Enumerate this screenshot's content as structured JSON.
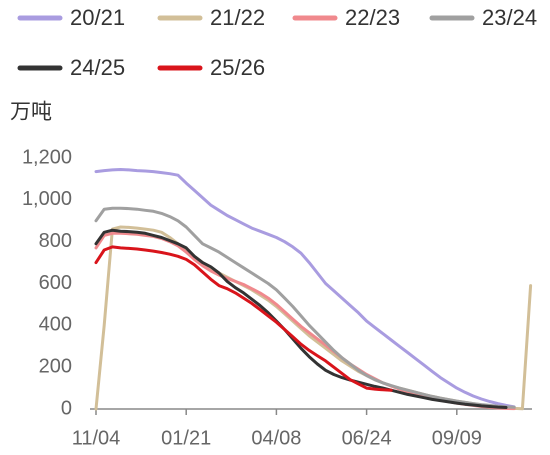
{
  "chart_data": {
    "type": "line",
    "y_label": "万吨",
    "categories": [
      "11/04",
      null,
      null,
      null,
      null,
      null,
      null,
      null,
      null,
      null,
      null,
      "01/21",
      null,
      null,
      null,
      null,
      null,
      null,
      null,
      null,
      null,
      null,
      "04/08",
      null,
      null,
      null,
      null,
      null,
      null,
      null,
      null,
      null,
      null,
      "06/24",
      null,
      null,
      null,
      null,
      null,
      null,
      null,
      null,
      null,
      null,
      "09/09",
      null,
      null,
      null,
      null,
      null,
      null,
      null,
      null,
      null
    ],
    "ylim": [
      0,
      1200
    ],
    "yticks": [
      0,
      200,
      400,
      600,
      800,
      {
        "value": 1000,
        "label": "1,000"
      },
      {
        "value": 1200,
        "label": "1,200"
      }
    ],
    "grid": false,
    "series": [
      {
        "name": "20/21",
        "color": "#a99ce0",
        "values": [
          1135,
          1140,
          1143,
          1145,
          1143,
          1140,
          1138,
          1135,
          1130,
          1125,
          1118,
          1080,
          1045,
          1010,
          975,
          950,
          925,
          905,
          885,
          865,
          850,
          835,
          820,
          800,
          775,
          745,
          700,
          650,
          600,
          565,
          530,
          495,
          460,
          420,
          390,
          360,
          330,
          300,
          270,
          240,
          210,
          180,
          150,
          125,
          100,
          80,
          62,
          48,
          36,
          26,
          17,
          10,
          null,
          null
        ]
      },
      {
        "name": "21/22",
        "color": "#d2bf98",
        "values": [
          0,
          400,
          860,
          870,
          868,
          865,
          860,
          855,
          845,
          820,
          790,
          760,
          730,
          700,
          670,
          650,
          630,
          610,
          590,
          570,
          545,
          520,
          490,
          455,
          420,
          385,
          350,
          320,
          290,
          260,
          230,
          205,
          180,
          160,
          140,
          125,
          110,
          100,
          90,
          80,
          70,
          60,
          52,
          45,
          38,
          32,
          26,
          20,
          15,
          10,
          6,
          3,
          1,
          590
        ]
      },
      {
        "name": "22/23",
        "color": "#f0898d",
        "values": [
          770,
          830,
          840,
          840,
          838,
          835,
          830,
          825,
          815,
          800,
          780,
          750,
          715,
          685,
          660,
          640,
          625,
          610,
          595,
          575,
          555,
          530,
          500,
          465,
          430,
          395,
          365,
          335,
          305,
          275,
          245,
          215,
          190,
          165,
          145,
          125,
          110,
          95,
          82,
          70,
          60,
          50,
          42,
          35,
          28,
          22,
          17,
          12,
          8,
          5,
          3,
          2,
          null,
          null
        ]
      },
      {
        "name": "23/24",
        "color": "#a0a0a0",
        "values": [
          900,
          955,
          960,
          960,
          958,
          955,
          950,
          945,
          935,
          920,
          900,
          870,
          830,
          790,
          770,
          750,
          725,
          700,
          675,
          650,
          625,
          600,
          570,
          530,
          490,
          445,
          400,
          360,
          320,
          280,
          245,
          215,
          185,
          160,
          140,
          125,
          112,
          100,
          90,
          80,
          70,
          60,
          52,
          45,
          38,
          32,
          26,
          21,
          17,
          13,
          10,
          8,
          null,
          null
        ]
      },
      {
        "name": "24/25",
        "color": "#333333",
        "values": [
          790,
          845,
          855,
          850,
          848,
          845,
          840,
          830,
          820,
          805,
          790,
          770,
          730,
          700,
          680,
          650,
          610,
          580,
          555,
          525,
          495,
          460,
          420,
          380,
          335,
          290,
          250,
          215,
          185,
          165,
          150,
          138,
          128,
          118,
          108,
          100,
          90,
          80,
          70,
          62,
          54,
          46,
          40,
          34,
          28,
          23,
          19,
          15,
          12,
          9,
          7,
          null,
          null,
          null
        ]
      },
      {
        "name": "25/26",
        "color": "#d9141b",
        "values": [
          700,
          760,
          775,
          770,
          768,
          765,
          760,
          755,
          748,
          740,
          730,
          715,
          690,
          655,
          620,
          590,
          575,
          555,
          530,
          505,
          475,
          445,
          415,
          380,
          345,
          310,
          280,
          255,
          230,
          200,
          170,
          140,
          120,
          100,
          95,
          92,
          90,
          null,
          null,
          null,
          null,
          null,
          null,
          null,
          null,
          null,
          null,
          null,
          null,
          null,
          null,
          null,
          null,
          null
        ]
      }
    ]
  }
}
